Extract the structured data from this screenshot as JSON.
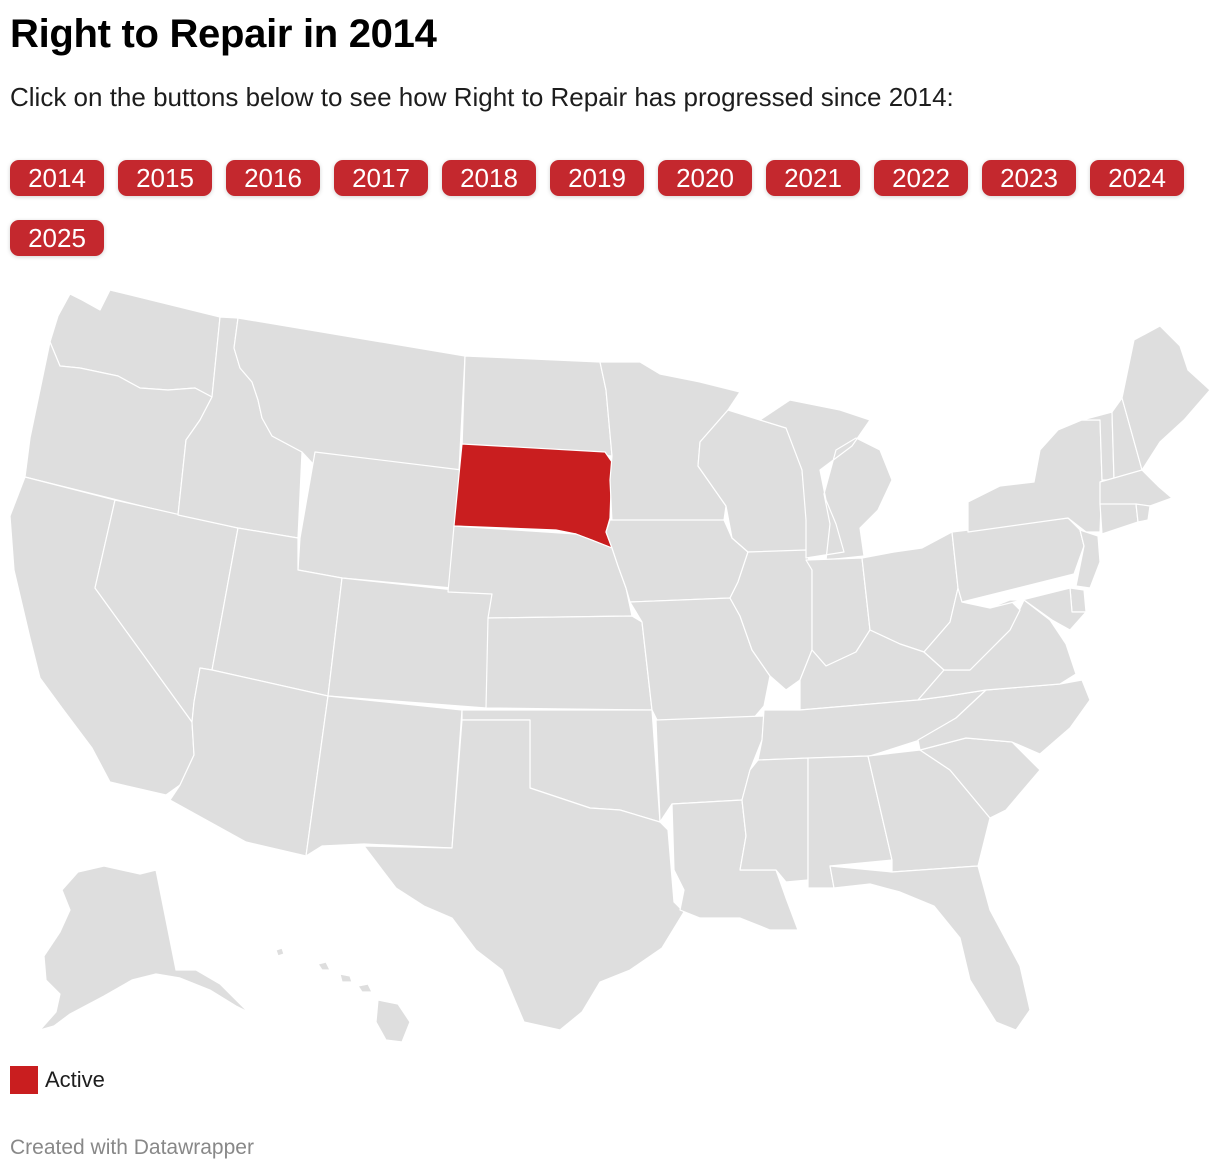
{
  "title": "Right to Repair in 2014",
  "subtitle": "Click on the buttons below to see how Right to Repair has progressed since 2014:",
  "year_buttons": [
    "2014",
    "2015",
    "2016",
    "2017",
    "2018",
    "2019",
    "2020",
    "2021",
    "2022",
    "2023",
    "2024",
    "2025"
  ],
  "selected_year": "2014",
  "colors": {
    "button_bg": "#c4282e",
    "button_text": "#ffffff",
    "active": "#c91e1f",
    "inactive": "#dedede",
    "border": "#ffffff"
  },
  "map": {
    "states": [
      {
        "id": "WA",
        "status": "inactive"
      },
      {
        "id": "OR",
        "status": "inactive"
      },
      {
        "id": "CA",
        "status": "inactive"
      },
      {
        "id": "NV",
        "status": "inactive"
      },
      {
        "id": "ID",
        "status": "inactive"
      },
      {
        "id": "MT",
        "status": "inactive"
      },
      {
        "id": "WY",
        "status": "inactive"
      },
      {
        "id": "UT",
        "status": "inactive"
      },
      {
        "id": "AZ",
        "status": "inactive"
      },
      {
        "id": "CO",
        "status": "inactive"
      },
      {
        "id": "NM",
        "status": "inactive"
      },
      {
        "id": "ND",
        "status": "inactive"
      },
      {
        "id": "SD",
        "status": "active"
      },
      {
        "id": "NE",
        "status": "inactive"
      },
      {
        "id": "KS",
        "status": "inactive"
      },
      {
        "id": "OK",
        "status": "inactive"
      },
      {
        "id": "TX",
        "status": "inactive"
      },
      {
        "id": "MN",
        "status": "inactive"
      },
      {
        "id": "IA",
        "status": "inactive"
      },
      {
        "id": "MO",
        "status": "inactive"
      },
      {
        "id": "AR",
        "status": "inactive"
      },
      {
        "id": "LA",
        "status": "inactive"
      },
      {
        "id": "WI",
        "status": "inactive"
      },
      {
        "id": "IL",
        "status": "inactive"
      },
      {
        "id": "MI",
        "status": "inactive"
      },
      {
        "id": "IN",
        "status": "inactive"
      },
      {
        "id": "OH",
        "status": "inactive"
      },
      {
        "id": "KY",
        "status": "inactive"
      },
      {
        "id": "TN",
        "status": "inactive"
      },
      {
        "id": "MS",
        "status": "inactive"
      },
      {
        "id": "AL",
        "status": "inactive"
      },
      {
        "id": "GA",
        "status": "inactive"
      },
      {
        "id": "FL",
        "status": "inactive"
      },
      {
        "id": "SC",
        "status": "inactive"
      },
      {
        "id": "NC",
        "status": "inactive"
      },
      {
        "id": "VA",
        "status": "inactive"
      },
      {
        "id": "WV",
        "status": "inactive"
      },
      {
        "id": "PA",
        "status": "inactive"
      },
      {
        "id": "NY",
        "status": "inactive"
      },
      {
        "id": "NJ",
        "status": "inactive"
      },
      {
        "id": "DE",
        "status": "inactive"
      },
      {
        "id": "MD",
        "status": "inactive"
      },
      {
        "id": "VT",
        "status": "inactive"
      },
      {
        "id": "NH",
        "status": "inactive"
      },
      {
        "id": "ME",
        "status": "inactive"
      },
      {
        "id": "MA",
        "status": "inactive"
      },
      {
        "id": "CT",
        "status": "inactive"
      },
      {
        "id": "RI",
        "status": "inactive"
      },
      {
        "id": "AK",
        "status": "inactive"
      },
      {
        "id": "HI",
        "status": "inactive"
      }
    ]
  },
  "legend": [
    {
      "label": "Active",
      "color": "#c91e1f"
    }
  ],
  "credit": "Created with Datawrapper"
}
